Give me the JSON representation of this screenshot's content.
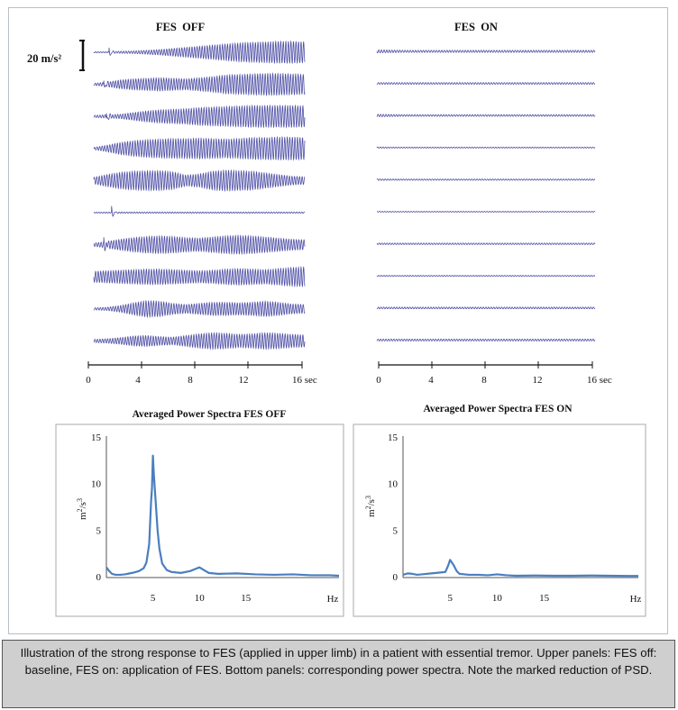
{
  "scale_bar": {
    "label": "20 m/s²"
  },
  "trace_panels": [
    {
      "title": "FES  OFF",
      "axis": {
        "ticks": [
          "0",
          "4",
          "8",
          "12",
          "16 sec"
        ],
        "range_sec": [
          0,
          16
        ]
      },
      "traces": [
        {
          "envelope": [
            0.05,
            0.05,
            0.1,
            0.12,
            0.18,
            0.25,
            0.35,
            0.45,
            0.55,
            0.65,
            0.75,
            0.85,
            0.9,
            0.95,
            1.0,
            1.0,
            0.95
          ],
          "artifact_sec": 1.2
        },
        {
          "envelope": [
            0.1,
            0.2,
            0.4,
            0.5,
            0.55,
            0.6,
            0.55,
            0.5,
            0.6,
            0.7,
            0.85,
            0.9,
            0.95,
            1.0,
            1.0,
            0.95,
            0.9
          ],
          "artifact_sec": 0.8
        },
        {
          "envelope": [
            0.1,
            0.15,
            0.2,
            0.35,
            0.5,
            0.6,
            0.65,
            0.7,
            0.8,
            0.85,
            0.9,
            0.95,
            1.0,
            1.0,
            1.0,
            1.0,
            0.95
          ],
          "artifact_sec": 1.0
        },
        {
          "envelope": [
            0.1,
            0.3,
            0.55,
            0.7,
            0.8,
            0.85,
            0.9,
            0.9,
            0.95,
            0.9,
            0.85,
            0.9,
            1.0,
            1.0,
            1.05,
            1.05,
            1.0
          ],
          "artifact_sec": -1
        },
        {
          "envelope": [
            0.3,
            0.55,
            0.75,
            0.85,
            0.9,
            0.9,
            0.8,
            0.5,
            0.6,
            0.85,
            0.95,
            0.9,
            0.85,
            0.7,
            0.55,
            0.4,
            0.35
          ],
          "artifact_sec": -1
        },
        {
          "envelope": [
            0.05,
            0.05,
            0.06,
            0.06,
            0.06,
            0.06,
            0.06,
            0.06,
            0.06,
            0.06,
            0.06,
            0.06,
            0.06,
            0.06,
            0.06,
            0.06,
            0.06
          ],
          "artifact_sec": 1.4
        },
        {
          "envelope": [
            0.15,
            0.3,
            0.5,
            0.65,
            0.75,
            0.8,
            0.75,
            0.65,
            0.6,
            0.7,
            0.8,
            0.85,
            0.8,
            0.7,
            0.6,
            0.5,
            0.45
          ],
          "artifact_sec": 0.8
        },
        {
          "envelope": [
            0.5,
            0.55,
            0.6,
            0.65,
            0.7,
            0.7,
            0.65,
            0.6,
            0.55,
            0.6,
            0.7,
            0.75,
            0.7,
            0.65,
            0.75,
            0.85,
            0.9
          ],
          "artifact_sec": -1
        },
        {
          "envelope": [
            0.1,
            0.15,
            0.3,
            0.55,
            0.75,
            0.7,
            0.5,
            0.4,
            0.5,
            0.6,
            0.6,
            0.55,
            0.6,
            0.7,
            0.6,
            0.45,
            0.4
          ],
          "artifact_sec": -1
        },
        {
          "envelope": [
            0.15,
            0.2,
            0.3,
            0.45,
            0.5,
            0.4,
            0.35,
            0.5,
            0.65,
            0.75,
            0.7,
            0.6,
            0.65,
            0.75,
            0.7,
            0.6,
            0.55
          ],
          "artifact_sec": -1
        }
      ]
    },
    {
      "title": "FES  ON",
      "axis": {
        "ticks": [
          "0",
          "4",
          "8",
          "12",
          "16 sec"
        ],
        "range_sec": [
          0,
          16
        ]
      },
      "traces": [
        {
          "envelope": [
            0.14,
            0.12,
            0.1,
            0.1,
            0.1,
            0.1,
            0.1,
            0.1,
            0.1,
            0.1,
            0.1,
            0.1,
            0.1,
            0.1,
            0.1,
            0.1,
            0.1
          ],
          "artifact_sec": -1
        },
        {
          "envelope": [
            0.08,
            0.08,
            0.08,
            0.08,
            0.08,
            0.08,
            0.08,
            0.08,
            0.08,
            0.08,
            0.08,
            0.08,
            0.08,
            0.08,
            0.08,
            0.08,
            0.08
          ],
          "artifact_sec": -1
        },
        {
          "envelope": [
            0.12,
            0.1,
            0.08,
            0.08,
            0.08,
            0.08,
            0.08,
            0.08,
            0.08,
            0.08,
            0.08,
            0.08,
            0.08,
            0.08,
            0.08,
            0.08,
            0.08
          ],
          "artifact_sec": -1
        },
        {
          "envelope": [
            0.06,
            0.05,
            0.05,
            0.05,
            0.05,
            0.05,
            0.05,
            0.05,
            0.05,
            0.05,
            0.05,
            0.05,
            0.05,
            0.05,
            0.05,
            0.05,
            0.05
          ],
          "artifact_sec": -1
        },
        {
          "envelope": [
            0.07,
            0.06,
            0.06,
            0.06,
            0.06,
            0.06,
            0.06,
            0.06,
            0.06,
            0.06,
            0.06,
            0.06,
            0.06,
            0.06,
            0.06,
            0.06,
            0.06
          ],
          "artifact_sec": -1
        },
        {
          "envelope": [
            0.04,
            0.04,
            0.04,
            0.04,
            0.04,
            0.04,
            0.04,
            0.04,
            0.04,
            0.04,
            0.04,
            0.04,
            0.04,
            0.04,
            0.04,
            0.04,
            0.04
          ],
          "artifact_sec": -1
        },
        {
          "envelope": [
            0.07,
            0.07,
            0.07,
            0.07,
            0.07,
            0.07,
            0.07,
            0.07,
            0.07,
            0.07,
            0.07,
            0.07,
            0.07,
            0.07,
            0.07,
            0.07,
            0.07
          ],
          "artifact_sec": -1
        },
        {
          "envelope": [
            0.05,
            0.05,
            0.05,
            0.05,
            0.05,
            0.05,
            0.05,
            0.05,
            0.05,
            0.05,
            0.05,
            0.05,
            0.05,
            0.05,
            0.05,
            0.05,
            0.05
          ],
          "artifact_sec": -1
        },
        {
          "envelope": [
            0.08,
            0.08,
            0.08,
            0.08,
            0.08,
            0.08,
            0.08,
            0.08,
            0.08,
            0.08,
            0.08,
            0.08,
            0.08,
            0.08,
            0.08,
            0.08,
            0.08
          ],
          "artifact_sec": -1
        },
        {
          "envelope": [
            0.09,
            0.09,
            0.09,
            0.09,
            0.09,
            0.09,
            0.09,
            0.09,
            0.09,
            0.09,
            0.09,
            0.09,
            0.09,
            0.09,
            0.09,
            0.09,
            0.09
          ],
          "artifact_sec": -1
        }
      ]
    }
  ],
  "chart_data": [
    {
      "type": "line",
      "title": "Averaged Power Spectra FES OFF",
      "xlabel": "Hz",
      "ylabel": "m²/s³",
      "xlim": [
        0,
        25
      ],
      "ylim": [
        0,
        15
      ],
      "x_ticks": [
        5,
        10,
        15
      ],
      "y_ticks": [
        0,
        5,
        10,
        15
      ],
      "series": [
        {
          "color": "#4a7ebf",
          "x": [
            0,
            0.3,
            0.6,
            1,
            1.5,
            2,
            2.5,
            3,
            3.5,
            4,
            4.3,
            4.6,
            4.8,
            4.9,
            5.0,
            5.1,
            5.2,
            5.3,
            5.5,
            5.7,
            6.0,
            6.5,
            7,
            8,
            9,
            9.5,
            10,
            10.5,
            11,
            12,
            14,
            16,
            18,
            20,
            22,
            24,
            25
          ],
          "values": [
            1.0,
            0.6,
            0.3,
            0.2,
            0.2,
            0.25,
            0.35,
            0.45,
            0.6,
            0.9,
            1.5,
            3.5,
            8.0,
            9.5,
            13.0,
            11.0,
            9.5,
            8.0,
            5.0,
            3.0,
            1.4,
            0.7,
            0.5,
            0.4,
            0.6,
            0.8,
            1.0,
            0.7,
            0.4,
            0.3,
            0.35,
            0.25,
            0.2,
            0.25,
            0.15,
            0.15,
            0.1
          ]
        }
      ]
    },
    {
      "type": "line",
      "title": "Averaged Power Spectra FES ON",
      "xlabel": "Hz",
      "ylabel": "m²/s³",
      "xlim": [
        0,
        25
      ],
      "ylim": [
        0,
        15
      ],
      "x_ticks": [
        5,
        10,
        15
      ],
      "y_ticks": [
        0,
        5,
        10,
        15
      ],
      "series": [
        {
          "color": "#4a7ebf",
          "x": [
            0,
            0.5,
            1,
            1.5,
            2,
            3,
            4,
            4.5,
            4.8,
            5.0,
            5.2,
            5.4,
            5.7,
            6.0,
            7,
            8,
            9,
            10,
            11,
            12,
            14,
            16,
            18,
            20,
            22,
            24,
            25
          ],
          "values": [
            0.2,
            0.35,
            0.3,
            0.2,
            0.25,
            0.35,
            0.45,
            0.5,
            1.2,
            1.8,
            1.5,
            1.2,
            0.6,
            0.3,
            0.2,
            0.2,
            0.15,
            0.25,
            0.15,
            0.1,
            0.12,
            0.1,
            0.1,
            0.12,
            0.1,
            0.08,
            0.08
          ]
        }
      ]
    }
  ],
  "caption": "Illustration of the strong response to FES (applied in upper limb) in a patient with essential tremor. Upper panels: FES off: baseline, FES on: application of FES. Bottom panels: corresponding power spectra. Note the marked reduction of PSD."
}
